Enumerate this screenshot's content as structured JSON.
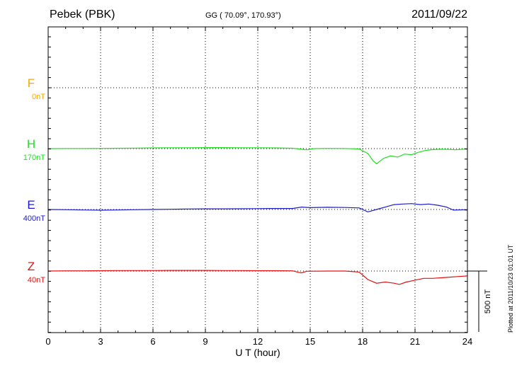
{
  "header": {
    "station": "Pebek (PBK)",
    "coordinates": "GG ( 70.09°, 170.93°)",
    "date": "2011/09/22",
    "plotted": "Plotted at 2011/10/23 01:01 UT"
  },
  "chart_data": {
    "type": "line",
    "xlabel": "U T (hour)",
    "xlim": [
      0,
      24
    ],
    "xticks": [
      0,
      3,
      6,
      9,
      12,
      15,
      18,
      21,
      24
    ],
    "scale_bar": "500 nT",
    "grid": true,
    "series": [
      {
        "name": "F",
        "baseline": "0nT",
        "color": "#f5a800",
        "x": [],
        "y": []
      },
      {
        "name": "H",
        "baseline": "170nT",
        "color": "#22dd22",
        "x": [
          0,
          1,
          2,
          3,
          4,
          5,
          6,
          7,
          8,
          9,
          10,
          11,
          12,
          13,
          14,
          14.5,
          14.8,
          15.2,
          16,
          17,
          17.8,
          18.3,
          18.6,
          18.8,
          19.2,
          19.6,
          20,
          20.4,
          20.8,
          21.2,
          21.6,
          22,
          22.5,
          23,
          23.3,
          24
        ],
        "y": [
          170,
          171,
          171,
          172,
          173,
          174,
          176,
          177,
          177,
          178,
          178,
          177,
          177,
          176,
          173,
          165,
          160,
          170,
          172,
          171,
          167,
          130,
          70,
          45,
          90,
          110,
          100,
          125,
          120,
          140,
          155,
          162,
          165,
          163,
          160,
          167
        ]
      },
      {
        "name": "E",
        "baseline": "400nT",
        "color": "#1a1acc",
        "x": [
          0,
          1,
          2,
          3,
          4,
          5,
          6,
          7,
          8,
          9,
          10,
          11,
          12,
          13,
          14,
          14.5,
          15,
          16,
          17,
          17.8,
          18.3,
          18.8,
          19.3,
          19.8,
          20.3,
          20.8,
          21.3,
          21.8,
          22.3,
          22.8,
          23.2,
          24
        ],
        "y": [
          400,
          398,
          396,
          394,
          396,
          398,
          400,
          402,
          404,
          405,
          405,
          406,
          407,
          408,
          408,
          420,
          415,
          418,
          416,
          413,
          380,
          400,
          420,
          440,
          445,
          448,
          440,
          445,
          435,
          420,
          395,
          398
        ]
      },
      {
        "name": "Z",
        "baseline": "40nT",
        "color": "#e81010",
        "x": [
          0,
          1,
          2,
          3,
          4,
          5,
          6,
          7,
          8,
          9,
          10,
          11,
          12,
          13,
          14,
          14.3,
          14.5,
          14.8,
          16,
          17,
          17.8,
          18.3,
          18.8,
          19.3,
          19.8,
          20.1,
          20.5,
          21,
          21.5,
          22,
          22.5,
          23,
          23.5,
          24
        ],
        "y": [
          40,
          42,
          42,
          43,
          44,
          44,
          44,
          45,
          45,
          45,
          44,
          44,
          43,
          43,
          42,
          30,
          25,
          38,
          40,
          40,
          32,
          -30,
          -60,
          -50,
          -60,
          -70,
          -50,
          -35,
          -20,
          -20,
          -15,
          -10,
          -5,
          0
        ]
      }
    ]
  }
}
